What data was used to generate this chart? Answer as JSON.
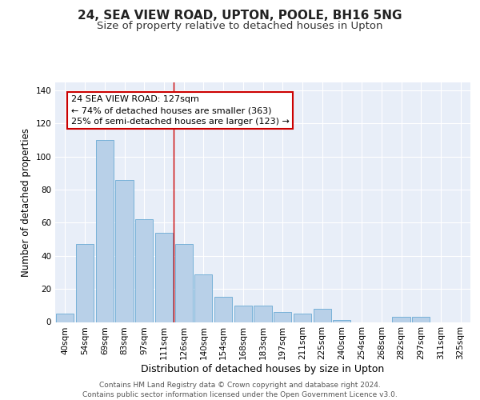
{
  "title": "24, SEA VIEW ROAD, UPTON, POOLE, BH16 5NG",
  "subtitle": "Size of property relative to detached houses in Upton",
  "xlabel": "Distribution of detached houses by size in Upton",
  "ylabel": "Number of detached properties",
  "categories": [
    "40sqm",
    "54sqm",
    "69sqm",
    "83sqm",
    "97sqm",
    "111sqm",
    "126sqm",
    "140sqm",
    "154sqm",
    "168sqm",
    "183sqm",
    "197sqm",
    "211sqm",
    "225sqm",
    "240sqm",
    "254sqm",
    "268sqm",
    "282sqm",
    "297sqm",
    "311sqm",
    "325sqm"
  ],
  "bar_heights": [
    5,
    47,
    110,
    86,
    62,
    54,
    47,
    29,
    15,
    10,
    10,
    6,
    5,
    8,
    1,
    0,
    0,
    3,
    3,
    0,
    0
  ],
  "bar_color": "#b8d0e8",
  "bar_edge_color": "#6aaad4",
  "vline_color": "#cc0000",
  "vline_x_data": 5.5,
  "annotation_text": "24 SEA VIEW ROAD: 127sqm\n← 74% of detached houses are smaller (363)\n25% of semi-detached houses are larger (123) →",
  "annotation_box_facecolor": "#ffffff",
  "annotation_box_edgecolor": "#cc0000",
  "ylim": [
    0,
    145
  ],
  "yticks": [
    0,
    20,
    40,
    60,
    80,
    100,
    120,
    140
  ],
  "footer_text": "Contains HM Land Registry data © Crown copyright and database right 2024.\nContains public sector information licensed under the Open Government Licence v3.0.",
  "bg_color": "#e8eef8",
  "grid_color": "#ffffff",
  "title_fontsize": 11,
  "subtitle_fontsize": 9.5,
  "axis_label_fontsize": 9,
  "tick_fontsize": 7.5,
  "annotation_fontsize": 8,
  "footer_fontsize": 6.5,
  "ylabel_fontsize": 8.5
}
